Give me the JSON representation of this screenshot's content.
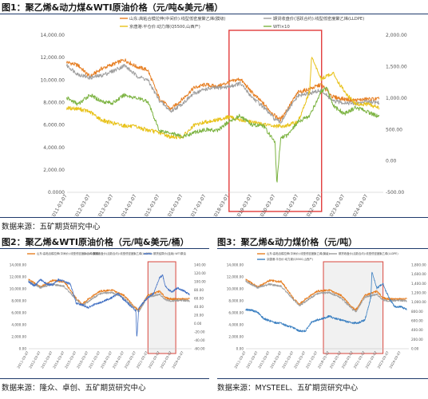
{
  "figures": [
    {
      "label": "图1：聚乙烯&动力煤&WTI原油价格（元/吨&美元/桶）",
      "source": "数据来源：五矿期货研究中心"
    },
    {
      "label": "图2：聚乙烯&WTI原油价格（元/吨&美元/桶）",
      "source": "数据来源：隆众、卓创、五矿期货研究中心"
    },
    {
      "label": "图3：聚乙烯&动力煤价格（元/吨）",
      "source": "数据来源：MYSTEEL、五矿期货研究中心"
    }
  ],
  "chart_data": [
    {
      "type": "line",
      "title": "",
      "x_ticks": [
        "2011-03-07",
        "2012-03-07",
        "2013-03-07",
        "2014-03-07",
        "2015-03-07",
        "2016-03-07",
        "2017-03-07",
        "2018-03-07",
        "2019-03-07",
        "2020-03-07",
        "2021-03-07",
        "2022-03-07",
        "2023-03-07",
        "2024-03-07"
      ],
      "y_left_ticks": [
        "0.0000",
        "2,000.00",
        "4,000.00",
        "6,000.00",
        "8,000.00",
        "10,000.00",
        "12,000.00",
        "14,000.00"
      ],
      "y_right_ticks": [
        "-500.00",
        "0.00",
        "500.00",
        "1,000.00",
        "1,500.00",
        "2,000.00"
      ],
      "ylim_left": [
        0,
        14000
      ],
      "ylim_right": [
        -500,
        2000
      ],
      "grid": false,
      "legend_position": "top",
      "highlight_box": {
        "x_from": "2018-03-07",
        "x_to": "2022-03-07"
      },
      "series": [
        {
          "name": "山东:高粘合模拉伸(中间价):线型低密度聚乙烯(膜级)",
          "axis": "left",
          "color": "#e67e22",
          "x": [
            "2011-03",
            "2011-09",
            "2012-03",
            "2012-09",
            "2013-03",
            "2013-09",
            "2014-03",
            "2014-09",
            "2015-03",
            "2015-09",
            "2016-03",
            "2016-09",
            "2017-03",
            "2017-09",
            "2018-03",
            "2018-09",
            "2019-03",
            "2019-09",
            "2020-03",
            "2020-06",
            "2020-09",
            "2021-03",
            "2021-09",
            "2022-03",
            "2022-09",
            "2023-03",
            "2023-09",
            "2024-03",
            "2024-09"
          ],
          "y": [
            11600,
            11300,
            10300,
            11000,
            11400,
            11800,
            11200,
            10900,
            8400,
            7400,
            8300,
            9300,
            9600,
            9400,
            9800,
            10100,
            8900,
            7900,
            6800,
            6500,
            7300,
            8900,
            9200,
            9600,
            8500,
            8300,
            8200,
            8300,
            8300
          ]
        },
        {
          "name": "期货收盘价(活跃合约):线型低密度聚乙烯(LLDPE)",
          "axis": "left",
          "color": "#9e9e9e",
          "x": [
            "2011-03",
            "2011-09",
            "2012-03",
            "2012-09",
            "2013-03",
            "2013-09",
            "2014-03",
            "2014-09",
            "2015-03",
            "2015-09",
            "2016-03",
            "2016-09",
            "2017-03",
            "2017-09",
            "2018-03",
            "2018-09",
            "2019-03",
            "2019-09",
            "2020-03",
            "2020-06",
            "2020-09",
            "2021-03",
            "2021-09",
            "2022-03",
            "2022-09",
            "2023-03",
            "2023-09",
            "2024-03",
            "2024-09"
          ],
          "y": [
            11300,
            10500,
            10200,
            10400,
            10800,
            11300,
            10400,
            10000,
            8200,
            7200,
            7900,
            8800,
            9200,
            9300,
            9400,
            9700,
            8500,
            7600,
            6500,
            6200,
            7100,
            8600,
            8800,
            9100,
            8100,
            8000,
            7900,
            8100,
            8000
          ]
        },
        {
          "name": "京唐港:平仓价:动力煤(Q5500,山西产)",
          "axis": "right",
          "color": "#e8c21a",
          "x": [
            "2011-03",
            "2011-09",
            "2012-03",
            "2012-09",
            "2013-03",
            "2013-09",
            "2014-03",
            "2014-09",
            "2015-03",
            "2015-09",
            "2016-03",
            "2016-09",
            "2017-03",
            "2017-09",
            "2018-03",
            "2018-09",
            "2019-03",
            "2019-09",
            "2020-03",
            "2020-09",
            "2021-03",
            "2021-09",
            "2021-10",
            "2022-03",
            "2022-09",
            "2023-03",
            "2023-09",
            "2024-03",
            "2024-09"
          ],
          "y": [
            840,
            830,
            780,
            650,
            600,
            560,
            540,
            490,
            450,
            380,
            380,
            560,
            620,
            650,
            700,
            650,
            620,
            580,
            550,
            560,
            620,
            1100,
            1650,
            1300,
            1400,
            1100,
            900,
            900,
            850
          ]
        },
        {
          "name": "WTI×10",
          "axis": "right",
          "color": "#7cb342",
          "x": [
            "2011-03",
            "2011-09",
            "2012-03",
            "2012-09",
            "2013-03",
            "2013-09",
            "2014-03",
            "2014-09",
            "2015-03",
            "2015-09",
            "2016-03",
            "2016-09",
            "2017-03",
            "2017-09",
            "2018-03",
            "2018-09",
            "2019-03",
            "2019-09",
            "2020-03",
            "2020-04",
            "2020-06",
            "2020-09",
            "2021-03",
            "2021-09",
            "2022-03",
            "2022-06",
            "2022-09",
            "2023-03",
            "2023-09",
            "2024-03",
            "2024-09"
          ],
          "y": [
            1000,
            900,
            1050,
            950,
            920,
            1050,
            1000,
            950,
            480,
            450,
            380,
            450,
            500,
            480,
            620,
            720,
            570,
            560,
            300,
            -370,
            380,
            400,
            620,
            720,
            1100,
            1150,
            880,
            750,
            850,
            780,
            700
          ]
        }
      ]
    },
    {
      "type": "line",
      "title": "",
      "legend_position": "top",
      "grid": false,
      "highlight_box": {
        "x_from": "2021-03-07",
        "x_to": "2023-07-07"
      },
      "y_left_ticks": [
        "0.00",
        "2,000.00",
        "4,000.00",
        "6,000.00",
        "8,000.00",
        "10,000.00",
        "12,000.00",
        "14,000.00"
      ],
      "y_right_ticks": [
        "-60.00",
        "-40.00",
        "-20.00",
        "0.00",
        "20.00",
        "40.00",
        "60.00",
        "80.00",
        "100.00",
        "120.00",
        "140.00"
      ],
      "ylim_left": [
        0,
        14000
      ],
      "ylim_right": [
        -60,
        140
      ],
      "x_ticks": [
        "2011-03-07",
        "2012-03-07",
        "2013-03-07",
        "2014-03-07",
        "2015-03-07",
        "2016-03-07",
        "2017-03-07",
        "2018-03-07",
        "2019-03-07",
        "2020-03-07",
        "2021-03-07",
        "2022-03-07",
        "2023-03-07",
        "2024-03-07"
      ],
      "series": [
        {
          "name": "山东:高粘合模拉伸(中间价):线型低密度聚乙烯(膜级)",
          "axis": "left",
          "color": "#e67e22",
          "x": [
            "2011-03",
            "2012-03",
            "2013-03",
            "2014-03",
            "2015-03",
            "2015-09",
            "2016-03",
            "2017-03",
            "2018-03",
            "2019-03",
            "2020-03",
            "2020-06",
            "2021-03",
            "2022-03",
            "2022-09",
            "2023-03",
            "2024-03",
            "2024-09"
          ],
          "y": [
            11600,
            10300,
            11400,
            11200,
            8400,
            7400,
            8300,
            9600,
            9800,
            8900,
            6800,
            6500,
            8900,
            9600,
            8500,
            8300,
            8300,
            8300
          ]
        },
        {
          "name": "期货收盘价(活跃合约):线型低密度聚乙烯(LLDPE)",
          "axis": "left",
          "color": "#9e9e9e",
          "x": [
            "2011-03",
            "2012-03",
            "2013-03",
            "2014-03",
            "2015-03",
            "2015-09",
            "2016-03",
            "2017-03",
            "2018-03",
            "2019-03",
            "2020-03",
            "2020-06",
            "2021-03",
            "2022-03",
            "2022-09",
            "2023-03",
            "2024-03",
            "2024-09"
          ],
          "y": [
            11300,
            10200,
            10800,
            10400,
            8200,
            7200,
            7900,
            9200,
            9400,
            8500,
            6500,
            6200,
            8600,
            9100,
            8100,
            8000,
            8100,
            8000
          ]
        },
        {
          "name": "期货结算价(连续):WTI原油",
          "axis": "right",
          "color": "#4472c4",
          "x": [
            "2011-03",
            "2011-09",
            "2012-03",
            "2012-09",
            "2013-03",
            "2013-09",
            "2014-03",
            "2014-09",
            "2015-03",
            "2015-09",
            "2016-03",
            "2016-09",
            "2017-03",
            "2018-03",
            "2018-09",
            "2019-03",
            "2020-03",
            "2020-04",
            "2020-06",
            "2021-03",
            "2021-09",
            "2022-03",
            "2022-06",
            "2022-09",
            "2023-03",
            "2023-09",
            "2024-03",
            "2024-09"
          ],
          "y": [
            100,
            90,
            105,
            95,
            92,
            105,
            100,
            95,
            48,
            45,
            38,
            45,
            50,
            62,
            72,
            57,
            30,
            -37,
            38,
            62,
            72,
            110,
            115,
            88,
            75,
            85,
            78,
            70
          ]
        }
      ]
    },
    {
      "type": "line",
      "title": "",
      "legend_position": "top",
      "grid": false,
      "highlight_box": {
        "x_from": "2017-09-07",
        "x_to": "2022-09-07"
      },
      "y_left_ticks": [
        "0.00",
        "2,000.00",
        "4,000.00",
        "6,000.00",
        "8,000.00",
        "10,000.00",
        "12,000.00",
        "14,000.00"
      ],
      "y_right_ticks": [
        "0.00",
        "200.00",
        "400.00",
        "600.00",
        "800.00",
        "1,000.00",
        "1,200.00",
        "1,400.00",
        "1,600.00",
        "1,800.00"
      ],
      "ylim_left": [
        0,
        14000
      ],
      "ylim_right": [
        0,
        1800
      ],
      "x_ticks": [
        "2011-03-07",
        "2012-03-07",
        "2013-03-07",
        "2014-03-07",
        "2015-03-07",
        "2016-03-07",
        "2017-03-07",
        "2018-03-07",
        "2019-03-07",
        "2020-03-07",
        "2021-03-07",
        "2022-03-07",
        "2023-03-07",
        "2024-03-07"
      ],
      "series": [
        {
          "name": "山东:高粘合模拉伸(中间价):线型低密度聚乙烯(膜级)",
          "axis": "left",
          "color": "#e67e22",
          "x": [
            "2011-03",
            "2012-03",
            "2013-03",
            "2014-03",
            "2015-03",
            "2015-09",
            "2016-03",
            "2017-03",
            "2018-03",
            "2019-03",
            "2020-03",
            "2020-06",
            "2021-03",
            "2022-03",
            "2022-09",
            "2023-03",
            "2024-03",
            "2024-09"
          ],
          "y": [
            11600,
            10300,
            11400,
            11200,
            8400,
            7400,
            8300,
            9600,
            9800,
            8900,
            6800,
            6500,
            8900,
            9600,
            8500,
            8300,
            8300,
            8300
          ]
        },
        {
          "name": "期货收盘价(活跃合约):线型低密度聚乙烯(LLDPE)",
          "axis": "left",
          "color": "#9e9e9e",
          "x": [
            "2011-03",
            "2012-03",
            "2013-03",
            "2014-03",
            "2015-03",
            "2015-09",
            "2016-03",
            "2017-03",
            "2018-03",
            "2019-03",
            "2020-03",
            "2020-06",
            "2021-03",
            "2022-03",
            "2022-09",
            "2023-03",
            "2024-03",
            "2024-09"
          ],
          "y": [
            11300,
            10200,
            10800,
            10400,
            8200,
            7200,
            7900,
            9200,
            9400,
            8500,
            6500,
            6200,
            8600,
            9100,
            8100,
            8000,
            8100,
            8000
          ]
        },
        {
          "name": "京唐港:平仓价:动力煤(Q5500,山西产)",
          "axis": "right",
          "color": "#3a7fc1",
          "x": [
            "2011-03",
            "2011-09",
            "2012-03",
            "2012-09",
            "2013-03",
            "2013-09",
            "2014-03",
            "2014-09",
            "2015-03",
            "2015-09",
            "2016-03",
            "2016-09",
            "2017-03",
            "2017-09",
            "2018-03",
            "2018-09",
            "2019-03",
            "2019-09",
            "2020-03",
            "2020-09",
            "2021-03",
            "2021-09",
            "2021-10",
            "2022-03",
            "2022-09",
            "2023-03",
            "2023-09",
            "2024-03",
            "2024-09"
          ],
          "y": [
            840,
            830,
            780,
            650,
            600,
            560,
            540,
            490,
            450,
            380,
            380,
            560,
            620,
            650,
            700,
            650,
            620,
            580,
            550,
            560,
            620,
            1100,
            1650,
            1300,
            1400,
            1100,
            900,
            900,
            850
          ]
        }
      ]
    }
  ]
}
